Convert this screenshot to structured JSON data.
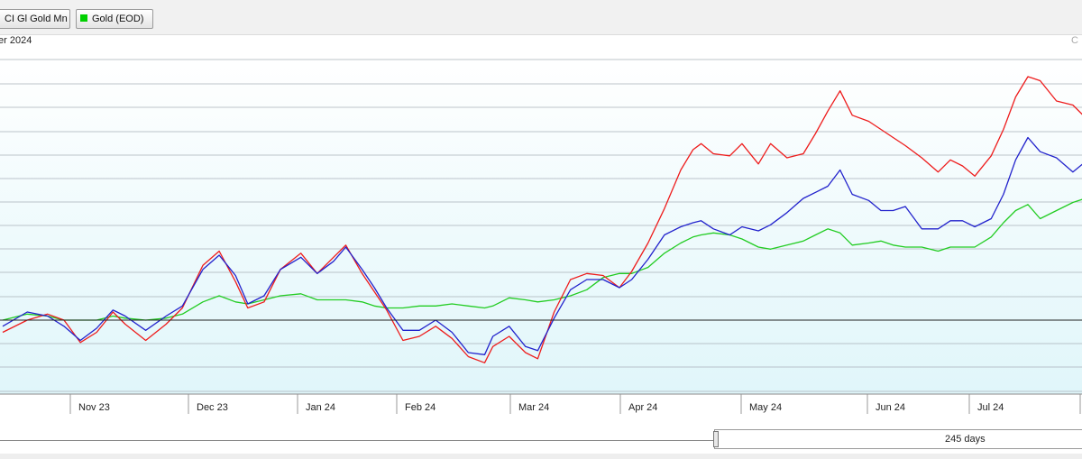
{
  "toolbar": {
    "series1_label": "CI Gl Gold Mn",
    "series2_label": "Gold (EOD)"
  },
  "header": {
    "subtitle": "er 2024",
    "right_label": "C"
  },
  "range": {
    "days_label": "245 days"
  },
  "colors": {
    "series1": "#ee1c1c",
    "series2": "#2222cc",
    "series3": "#22cc22",
    "plot_background_top": "#ffffff",
    "plot_background_bottom": "#e0f6fa",
    "gridline": "#a8b0b8",
    "baseline": "#222222"
  },
  "chart_data": {
    "type": "line",
    "title": "",
    "xlabel": "",
    "ylabel": "",
    "x_tick_labels": [
      "Nov 23",
      "Dec 23",
      "Jan 24",
      "Feb 24",
      "Mar 24",
      "Apr 24",
      "May 24",
      "Jun 24",
      "Jul 24"
    ],
    "y_tick_labels": [],
    "grid": true,
    "legend": "top-left",
    "baseline_value": 0,
    "x_unit": "trading day index",
    "y_unit": "relative change (approximate, unlabeled axis)",
    "series": [
      {
        "color": "red",
        "points": [
          [
            0,
            -0.6
          ],
          [
            6,
            0.0
          ],
          [
            11,
            0.3
          ],
          [
            15,
            0.0
          ],
          [
            19,
            -1.1
          ],
          [
            23,
            -0.6
          ],
          [
            27,
            0.4
          ],
          [
            30,
            -0.2
          ],
          [
            35,
            -1.0
          ],
          [
            40,
            -0.2
          ],
          [
            44,
            0.6
          ],
          [
            49,
            2.7
          ],
          [
            53,
            3.4
          ],
          [
            57,
            1.9
          ],
          [
            60,
            0.6
          ],
          [
            64,
            0.9
          ],
          [
            68,
            2.5
          ],
          [
            73,
            3.3
          ],
          [
            77,
            2.3
          ],
          [
            81,
            3.1
          ],
          [
            84,
            3.7
          ],
          [
            88,
            2.3
          ],
          [
            91,
            1.4
          ],
          [
            94,
            0.5
          ],
          [
            98,
            -1.0
          ],
          [
            102,
            -0.8
          ],
          [
            106,
            -0.3
          ],
          [
            110,
            -0.9
          ],
          [
            114,
            -1.8
          ],
          [
            118,
            -2.1
          ],
          [
            120,
            -1.3
          ],
          [
            124,
            -0.8
          ],
          [
            128,
            -1.6
          ],
          [
            131,
            -1.9
          ],
          [
            135,
            0.4
          ],
          [
            139,
            2.0
          ],
          [
            143,
            2.3
          ],
          [
            147,
            2.2
          ],
          [
            151,
            1.6
          ],
          [
            154,
            2.4
          ],
          [
            158,
            3.8
          ],
          [
            162,
            5.5
          ],
          [
            166,
            7.4
          ],
          [
            169,
            8.4
          ],
          [
            171,
            8.7
          ],
          [
            174,
            8.2
          ],
          [
            178,
            8.1
          ],
          [
            181,
            8.7
          ],
          [
            185,
            7.7
          ],
          [
            188,
            8.7
          ],
          [
            192,
            8.0
          ],
          [
            196,
            8.2
          ],
          [
            199,
            9.2
          ],
          [
            202,
            10.3
          ],
          [
            205,
            11.3
          ],
          [
            208,
            10.1
          ],
          [
            212,
            9.8
          ],
          [
            215,
            9.4
          ],
          [
            218,
            9.0
          ],
          [
            221,
            8.6
          ],
          [
            225,
            8.0
          ],
          [
            229,
            7.3
          ],
          [
            232,
            7.9
          ],
          [
            235,
            7.6
          ],
          [
            238,
            7.1
          ],
          [
            242,
            8.1
          ],
          [
            245,
            9.4
          ],
          [
            248,
            11.0
          ],
          [
            251,
            12.0
          ],
          [
            254,
            11.8
          ],
          [
            258,
            10.8
          ],
          [
            262,
            10.6
          ],
          [
            265,
            10.0
          ]
        ]
      },
      {
        "color": "blue",
        "points": [
          [
            0,
            -0.3
          ],
          [
            6,
            0.4
          ],
          [
            11,
            0.2
          ],
          [
            15,
            -0.3
          ],
          [
            19,
            -1.0
          ],
          [
            23,
            -0.4
          ],
          [
            27,
            0.5
          ],
          [
            30,
            0.2
          ],
          [
            35,
            -0.5
          ],
          [
            40,
            0.2
          ],
          [
            44,
            0.7
          ],
          [
            49,
            2.5
          ],
          [
            53,
            3.2
          ],
          [
            57,
            2.2
          ],
          [
            60,
            0.8
          ],
          [
            64,
            1.2
          ],
          [
            68,
            2.5
          ],
          [
            73,
            3.1
          ],
          [
            77,
            2.3
          ],
          [
            81,
            2.9
          ],
          [
            84,
            3.6
          ],
          [
            88,
            2.5
          ],
          [
            91,
            1.6
          ],
          [
            94,
            0.6
          ],
          [
            98,
            -0.5
          ],
          [
            102,
            -0.5
          ],
          [
            106,
            0.0
          ],
          [
            110,
            -0.6
          ],
          [
            114,
            -1.6
          ],
          [
            118,
            -1.7
          ],
          [
            120,
            -0.8
          ],
          [
            124,
            -0.3
          ],
          [
            128,
            -1.3
          ],
          [
            131,
            -1.5
          ],
          [
            135,
            0.1
          ],
          [
            139,
            1.5
          ],
          [
            143,
            2.0
          ],
          [
            147,
            2.0
          ],
          [
            151,
            1.6
          ],
          [
            154,
            2.0
          ],
          [
            158,
            3.0
          ],
          [
            162,
            4.2
          ],
          [
            166,
            4.6
          ],
          [
            169,
            4.8
          ],
          [
            171,
            4.9
          ],
          [
            174,
            4.5
          ],
          [
            178,
            4.2
          ],
          [
            181,
            4.6
          ],
          [
            185,
            4.4
          ],
          [
            188,
            4.7
          ],
          [
            192,
            5.3
          ],
          [
            196,
            6.0
          ],
          [
            199,
            6.3
          ],
          [
            202,
            6.6
          ],
          [
            205,
            7.4
          ],
          [
            208,
            6.2
          ],
          [
            212,
            5.9
          ],
          [
            215,
            5.4
          ],
          [
            218,
            5.4
          ],
          [
            221,
            5.6
          ],
          [
            225,
            4.5
          ],
          [
            229,
            4.5
          ],
          [
            232,
            4.9
          ],
          [
            235,
            4.9
          ],
          [
            238,
            4.6
          ],
          [
            242,
            5.0
          ],
          [
            245,
            6.2
          ],
          [
            248,
            7.9
          ],
          [
            251,
            9.0
          ],
          [
            254,
            8.3
          ],
          [
            258,
            8.0
          ],
          [
            262,
            7.3
          ],
          [
            265,
            7.8
          ]
        ]
      },
      {
        "color": "green",
        "points": [
          [
            0,
            0.0
          ],
          [
            6,
            0.3
          ],
          [
            11,
            0.2
          ],
          [
            15,
            0.0
          ],
          [
            19,
            0.0
          ],
          [
            23,
            0.0
          ],
          [
            27,
            0.2
          ],
          [
            30,
            0.1
          ],
          [
            35,
            0.0
          ],
          [
            40,
            0.1
          ],
          [
            44,
            0.3
          ],
          [
            49,
            0.9
          ],
          [
            53,
            1.2
          ],
          [
            57,
            0.9
          ],
          [
            60,
            0.8
          ],
          [
            64,
            1.0
          ],
          [
            68,
            1.2
          ],
          [
            73,
            1.3
          ],
          [
            77,
            1.0
          ],
          [
            81,
            1.0
          ],
          [
            84,
            1.0
          ],
          [
            88,
            0.9
          ],
          [
            91,
            0.7
          ],
          [
            94,
            0.6
          ],
          [
            98,
            0.6
          ],
          [
            102,
            0.7
          ],
          [
            106,
            0.7
          ],
          [
            110,
            0.8
          ],
          [
            114,
            0.7
          ],
          [
            118,
            0.6
          ],
          [
            120,
            0.7
          ],
          [
            124,
            1.1
          ],
          [
            128,
            1.0
          ],
          [
            131,
            0.9
          ],
          [
            135,
            1.0
          ],
          [
            139,
            1.2
          ],
          [
            143,
            1.5
          ],
          [
            147,
            2.1
          ],
          [
            151,
            2.3
          ],
          [
            154,
            2.3
          ],
          [
            158,
            2.6
          ],
          [
            162,
            3.3
          ],
          [
            166,
            3.8
          ],
          [
            169,
            4.1
          ],
          [
            171,
            4.2
          ],
          [
            174,
            4.3
          ],
          [
            178,
            4.2
          ],
          [
            181,
            4.0
          ],
          [
            185,
            3.6
          ],
          [
            188,
            3.5
          ],
          [
            192,
            3.7
          ],
          [
            196,
            3.9
          ],
          [
            199,
            4.2
          ],
          [
            202,
            4.5
          ],
          [
            205,
            4.3
          ],
          [
            208,
            3.7
          ],
          [
            212,
            3.8
          ],
          [
            215,
            3.9
          ],
          [
            218,
            3.7
          ],
          [
            221,
            3.6
          ],
          [
            225,
            3.6
          ],
          [
            229,
            3.4
          ],
          [
            232,
            3.6
          ],
          [
            235,
            3.6
          ],
          [
            238,
            3.6
          ],
          [
            242,
            4.1
          ],
          [
            245,
            4.8
          ],
          [
            248,
            5.4
          ],
          [
            251,
            5.7
          ],
          [
            254,
            5.0
          ],
          [
            258,
            5.4
          ],
          [
            262,
            5.8
          ],
          [
            265,
            6.0
          ]
        ]
      }
    ]
  }
}
